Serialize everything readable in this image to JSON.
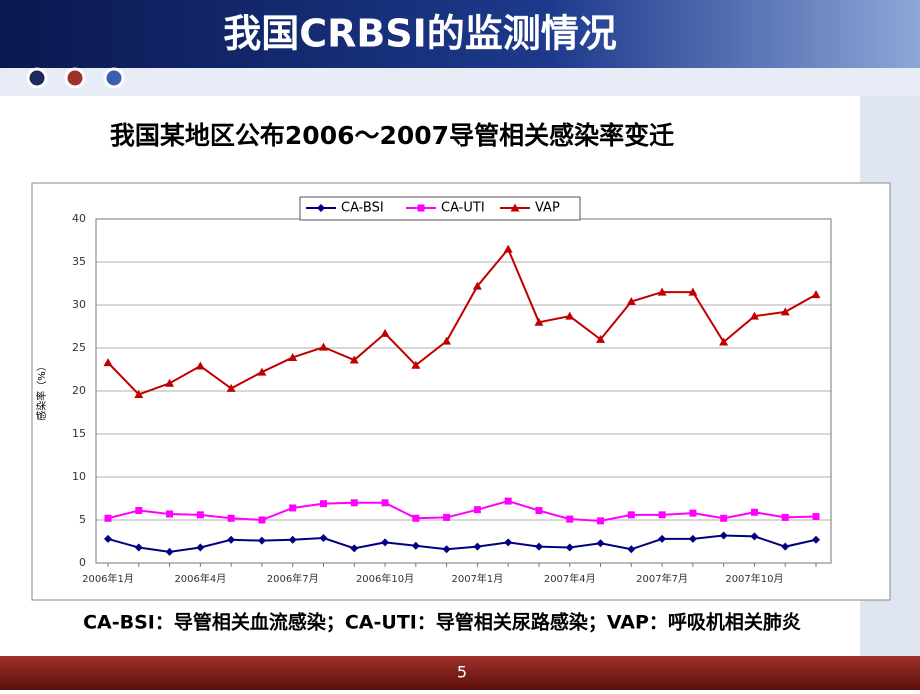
{
  "header": {
    "title": "我国CRBSI的监测情况"
  },
  "subtitle": "我国某地区公布2006～2007导管相关感染率变迁",
  "chart_data": {
    "type": "line",
    "ylabel": "感染率（%）",
    "categories": [
      "2006年1月",
      null,
      null,
      "2006年4月",
      null,
      null,
      "2006年7月",
      null,
      null,
      "2006年10月",
      null,
      null,
      "2007年1月",
      null,
      null,
      "2007年4月",
      null,
      null,
      "2007年7月",
      null,
      null,
      "2007年10月",
      null,
      null
    ],
    "series": [
      {
        "name": "CA-BSI",
        "color": "#000080",
        "marker": "diamond",
        "values": [
          2.8,
          1.8,
          1.3,
          1.8,
          2.7,
          2.6,
          2.7,
          2.9,
          1.7,
          2.4,
          2.0,
          1.6,
          1.9,
          2.4,
          1.9,
          1.8,
          2.3,
          1.6,
          2.8,
          2.8,
          3.2,
          3.1,
          1.9,
          2.7
        ]
      },
      {
        "name": "CA-UTI",
        "color": "#ff00ff",
        "marker": "square",
        "values": [
          5.2,
          6.1,
          5.7,
          5.6,
          5.2,
          5.0,
          6.4,
          6.9,
          7.0,
          7.0,
          5.2,
          5.3,
          6.2,
          7.2,
          6.1,
          5.1,
          4.9,
          5.6,
          5.6,
          5.8,
          5.2,
          5.9,
          5.3,
          5.4
        ]
      },
      {
        "name": "VAP",
        "color": "#c00000",
        "marker": "triangle",
        "values": [
          23.3,
          19.6,
          20.9,
          22.9,
          20.3,
          22.2,
          23.9,
          25.1,
          23.6,
          26.7,
          23.0,
          25.8,
          32.2,
          36.5,
          28.0,
          28.7,
          26.0,
          30.4,
          31.5,
          31.5,
          25.7,
          28.7,
          29.2,
          31.2
        ]
      }
    ],
    "ylim": [
      0,
      40
    ],
    "yticks": [
      0,
      5,
      10,
      15,
      20,
      25,
      30,
      35,
      40
    ],
    "grid": true,
    "legend": "top"
  },
  "footnote": "CA-BSI：导管相关血流感染；CA-UTI：导管相关尿路感染；VAP：呼吸机相关肺炎",
  "page_number": 5
}
